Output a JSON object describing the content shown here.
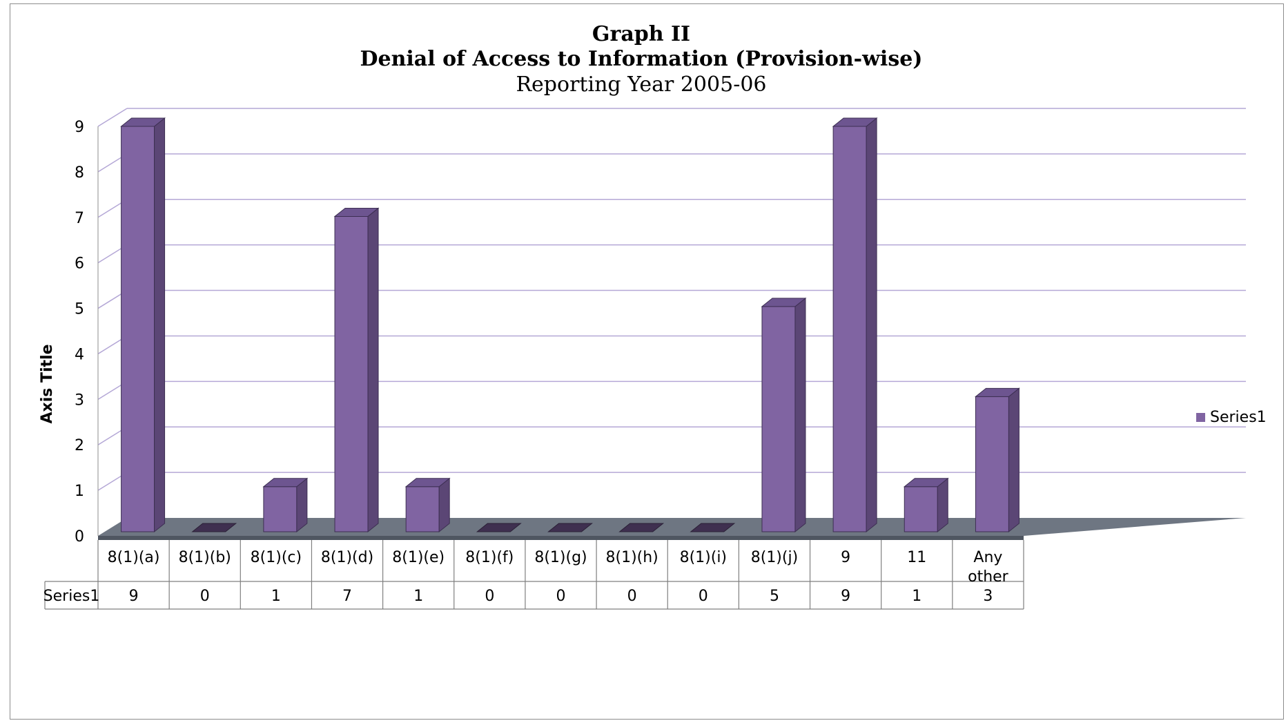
{
  "chart_data": {
    "type": "bar",
    "title": "Graph II",
    "subtitle": "Denial of Access to Information (Provision-wise)",
    "subtitle2": "Reporting Year  2005-06",
    "xlabel": "",
    "ylabel": "Axis Title",
    "ylim": [
      0,
      9
    ],
    "yticks": [
      "0",
      "1",
      "2",
      "3",
      "4",
      "5",
      "6",
      "7",
      "8",
      "9"
    ],
    "categories": [
      "8(1)(a)",
      "8(1)(b)",
      "8(1)(c)",
      "8(1)(d)",
      "8(1)(e)",
      "8(1)(f)",
      "8(1)(g)",
      "8(1)(h)",
      "8(1)(i)",
      "8(1)(j)",
      "9",
      "11",
      "Any other"
    ],
    "series": [
      {
        "name": "Series1",
        "values": [
          9,
          0,
          1,
          7,
          1,
          0,
          0,
          0,
          0,
          5,
          9,
          1,
          3
        ]
      }
    ],
    "grid": true,
    "legend": "right",
    "data_table": true,
    "colors": {
      "bar_front": "#8064a2",
      "bar_side": "#5b4675",
      "bar_top": "#6d5590",
      "grid": "#b4a7d6",
      "floor": "#6e7682"
    }
  }
}
